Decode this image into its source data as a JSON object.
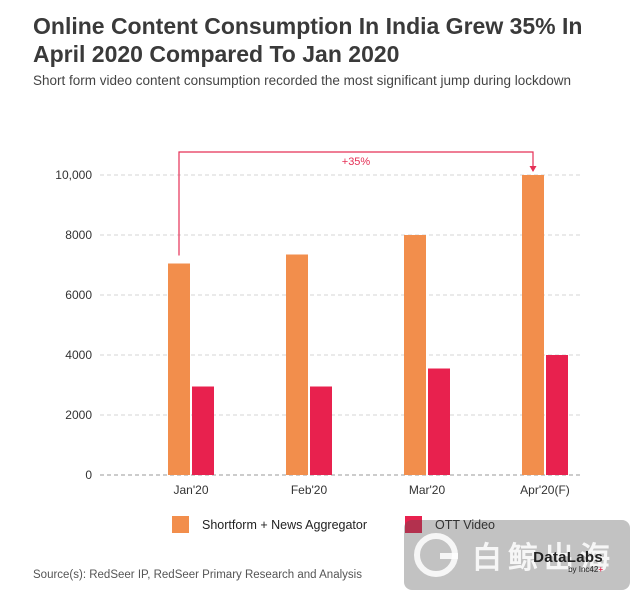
{
  "header": {
    "title": "Online Content Consumption In India Grew 35% In April 2020 Compared To Jan 2020",
    "subtitle": "Short form video content consumption recorded the most significant jump during lockdown"
  },
  "chart_data": {
    "type": "bar",
    "categories": [
      "Jan'20",
      "Feb'20",
      "Mar'20",
      "Apr'20(F)"
    ],
    "series": [
      {
        "name": "Shortform + News Aggregator",
        "color": "#f28e4c",
        "values": [
          7050,
          7350,
          8000,
          10000
        ]
      },
      {
        "name": "OTT Video",
        "color": "#e8214e",
        "values": [
          2950,
          2950,
          3550,
          4000
        ]
      }
    ],
    "ylim": [
      0,
      10000
    ],
    "yticks": [
      0,
      2000,
      4000,
      6000,
      8000,
      10000
    ],
    "ytick_labels": [
      "0",
      "2000",
      "4000",
      "6000",
      "8000",
      "10,000"
    ],
    "grid": true,
    "annotation": {
      "text": "+35%",
      "from_category": "Jan'20",
      "to_category": "Apr'20(F)",
      "color": "#e53056"
    },
    "legend_position": "bottom"
  },
  "legend": {
    "items": [
      {
        "label": "Shortform + News Aggregator",
        "color": "#f28e4c"
      },
      {
        "label": "OTT Video",
        "color": "#e8214e"
      }
    ]
  },
  "footer": {
    "source": "Source(s): RedSeer IP, RedSeer Primary Research and Analysis",
    "brand_main": "DataLabs",
    "brand_by": "by Inc42",
    "brand_plus": "+"
  },
  "watermark": {
    "text": "白鲸出海"
  }
}
